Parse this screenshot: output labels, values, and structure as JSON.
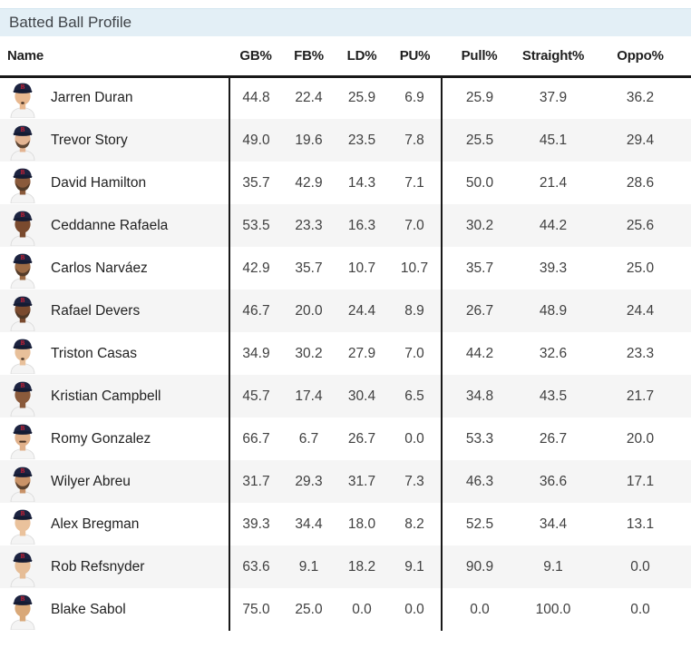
{
  "title": "Batted Ball Profile",
  "colors": {
    "title_bar_bg": "#e3eff6",
    "header_border": "#191919",
    "alt_row_bg": "#f5f5f5",
    "cell_text": "#404040",
    "cap_navy": "#1c2340",
    "cap_logo_red": "#d21f33"
  },
  "table": {
    "columns": [
      {
        "key": "name",
        "label": "Name"
      },
      {
        "key": "gb",
        "label": "GB%"
      },
      {
        "key": "fb",
        "label": "FB%"
      },
      {
        "key": "ld",
        "label": "LD%"
      },
      {
        "key": "pu",
        "label": "PU%"
      },
      {
        "key": "pull",
        "label": "Pull%"
      },
      {
        "key": "straight",
        "label": "Straight%"
      },
      {
        "key": "oppo",
        "label": "Oppo%"
      }
    ],
    "rows": [
      {
        "name": "Jarren Duran",
        "gb": "44.8",
        "fb": "22.4",
        "ld": "25.9",
        "pu": "6.9",
        "pull": "25.9",
        "straight": "37.9",
        "oppo": "36.2",
        "avatar_skin": "#e8b88f",
        "facial_hair": "goatee"
      },
      {
        "name": "Trevor Story",
        "gb": "49.0",
        "fb": "19.6",
        "ld": "23.5",
        "pu": "7.8",
        "pull": "25.5",
        "straight": "45.1",
        "oppo": "29.4",
        "avatar_skin": "#e3b492",
        "facial_hair": "beard"
      },
      {
        "name": "David Hamilton",
        "gb": "35.7",
        "fb": "42.9",
        "ld": "14.3",
        "pu": "7.1",
        "pull": "50.0",
        "straight": "21.4",
        "oppo": "28.6",
        "avatar_skin": "#8a5a3b",
        "facial_hair": "beard"
      },
      {
        "name": "Ceddanne Rafaela",
        "gb": "53.5",
        "fb": "23.3",
        "ld": "16.3",
        "pu": "7.0",
        "pull": "30.2",
        "straight": "44.2",
        "oppo": "25.6",
        "avatar_skin": "#7a4a2e",
        "facial_hair": "none"
      },
      {
        "name": "Carlos Narváez",
        "gb": "42.9",
        "fb": "35.7",
        "ld": "10.7",
        "pu": "10.7",
        "pull": "35.7",
        "straight": "39.3",
        "oppo": "25.0",
        "avatar_skin": "#9c6b45",
        "facial_hair": "beard"
      },
      {
        "name": "Rafael Devers",
        "gb": "46.7",
        "fb": "20.0",
        "ld": "24.4",
        "pu": "8.9",
        "pull": "26.7",
        "straight": "48.9",
        "oppo": "24.4",
        "avatar_skin": "#7a4a2e",
        "facial_hair": "beard"
      },
      {
        "name": "Triston Casas",
        "gb": "34.9",
        "fb": "30.2",
        "ld": "27.9",
        "pu": "7.0",
        "pull": "44.2",
        "straight": "32.6",
        "oppo": "23.3",
        "avatar_skin": "#e8c09a",
        "facial_hair": "goatee"
      },
      {
        "name": "Kristian Campbell",
        "gb": "45.7",
        "fb": "17.4",
        "ld": "30.4",
        "pu": "6.5",
        "pull": "34.8",
        "straight": "43.5",
        "oppo": "21.7",
        "avatar_skin": "#8a5a3b",
        "facial_hair": "none"
      },
      {
        "name": "Romy Gonzalez",
        "gb": "66.7",
        "fb": "6.7",
        "ld": "26.7",
        "pu": "0.0",
        "pull": "53.3",
        "straight": "26.7",
        "oppo": "20.0",
        "avatar_skin": "#e0b08a",
        "facial_hair": "mustache"
      },
      {
        "name": "Wilyer Abreu",
        "gb": "31.7",
        "fb": "29.3",
        "ld": "31.7",
        "pu": "7.3",
        "pull": "46.3",
        "straight": "36.6",
        "oppo": "17.1",
        "avatar_skin": "#c99368",
        "facial_hair": "beard"
      },
      {
        "name": "Alex Bregman",
        "gb": "39.3",
        "fb": "34.4",
        "ld": "18.0",
        "pu": "8.2",
        "pull": "52.5",
        "straight": "34.4",
        "oppo": "13.1",
        "avatar_skin": "#eac29c",
        "facial_hair": "none"
      },
      {
        "name": "Rob Refsnyder",
        "gb": "63.6",
        "fb": "9.1",
        "ld": "18.2",
        "pu": "9.1",
        "pull": "90.9",
        "straight": "9.1",
        "oppo": "0.0",
        "avatar_skin": "#e6bd96",
        "facial_hair": "none"
      },
      {
        "name": "Blake Sabol",
        "gb": "75.0",
        "fb": "25.0",
        "ld": "0.0",
        "pu": "0.0",
        "pull": "0.0",
        "straight": "100.0",
        "oppo": "0.0",
        "avatar_skin": "#d9a878",
        "facial_hair": "none"
      }
    ]
  }
}
